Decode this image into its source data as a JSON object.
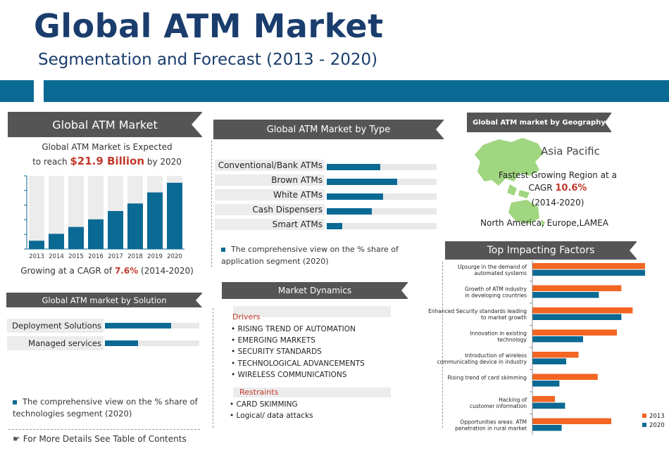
{
  "header": {
    "title": "Global ATM Market",
    "subtitle": "Segmentation and Forecast (2013 - 2020)"
  },
  "market_panel": {
    "heading": "Global ATM Market",
    "line1": "Global ATM Market is Expected",
    "line2_pre": "to reach ",
    "line2_value": "$21.9 Billion",
    "line2_post": " by 2020",
    "growth_pre": "Growing at a CAGR of ",
    "growth_value": "7.6%",
    "growth_post": " (2014-2020)"
  },
  "type_panel": {
    "heading": "Global ATM Market by Type",
    "note": "The comprehensive view on the % share of application segment (2020)"
  },
  "geo_panel": {
    "heading": "Global ATM market by Geography",
    "region": "Asia Pacific",
    "line1": "Fastest Growing Region at a",
    "cagr_label": "CAGR ",
    "cagr_value": "10.6%",
    "period": "(2014-2020)",
    "others": "North America, Europe,LAMEA"
  },
  "solution_panel": {
    "heading": "Global ATM market by Solution",
    "note": "The comprehensive view on the % share of technologies segment (2020)"
  },
  "dynamics": {
    "heading": "Market Dynamics",
    "drivers_label": "Drivers",
    "drivers": [
      "RISING TREND OF AUTOMATION",
      "EMERGING MARKETS",
      "SECURITY STANDARDS",
      "TECHNOLOGICAL ADVANCEMENTS",
      "WIRELESS COMMUNICATIONS"
    ],
    "restraints_label": "Restraints",
    "restraints": [
      "CARD SKIMMING",
      "Logical/ data attacks"
    ]
  },
  "factors_panel": {
    "heading": "Top Impacting Factors"
  },
  "footer": {
    "text": "For More Details See Table of Contents"
  },
  "colors": {
    "navy": "#1a3d6d",
    "blue": "#0b6a94",
    "orange": "#f26522",
    "gray_header": "#555555",
    "red": "#c0392b"
  },
  "chart_data": [
    {
      "type": "bar",
      "categories": [
        "2013",
        "2014",
        "2015",
        "2016",
        "2017",
        "2018",
        "2019",
        "2020"
      ],
      "values": [
        1.2,
        2.2,
        3.2,
        4.3,
        5.5,
        6.6,
        8.2,
        9.6
      ],
      "ylim": [
        0,
        10.6
      ]
    },
    {
      "type": "bar",
      "orientation": "horizontal",
      "categories": [
        "Conventional/Bank ATMs",
        "Brown ATMs",
        "White ATMs",
        "Cash Dispensers",
        "Smart ATMs"
      ],
      "values": [
        49,
        64,
        51,
        41,
        14
      ],
      "xlim": [
        0,
        100
      ]
    },
    {
      "type": "bar",
      "orientation": "horizontal",
      "categories": [
        "Deployment Solutions",
        "Managed services"
      ],
      "values": [
        70,
        35
      ],
      "xlim": [
        0,
        100
      ]
    },
    {
      "type": "bar",
      "orientation": "horizontal",
      "categories": [
        [
          "Upsurge in the demand of",
          "automated systems"
        ],
        [
          "Growth of ATM industry",
          "in developing countries"
        ],
        [
          "Enhanced Security standards leading",
          "to market growth"
        ],
        [
          "Innovation in existing",
          "technology"
        ],
        [
          "Introduction of wireless",
          "communicating device in industry"
        ],
        [
          "Rising trend of card skimming"
        ],
        [
          "Hacking  of",
          "customer information"
        ],
        [
          "Opportunities areas: ATM",
          "penetration in rural market"
        ]
      ],
      "series": [
        {
          "name": "2013",
          "color": "#f26522",
          "values": [
            100,
            79,
            89,
            75,
            41,
            58,
            20,
            70
          ]
        },
        {
          "name": "2020",
          "color": "#0b6a94",
          "values": [
            100,
            59,
            79,
            45,
            30,
            24,
            29,
            26
          ]
        }
      ],
      "xlim": [
        0,
        100
      ],
      "legend": "bottom-right"
    }
  ]
}
